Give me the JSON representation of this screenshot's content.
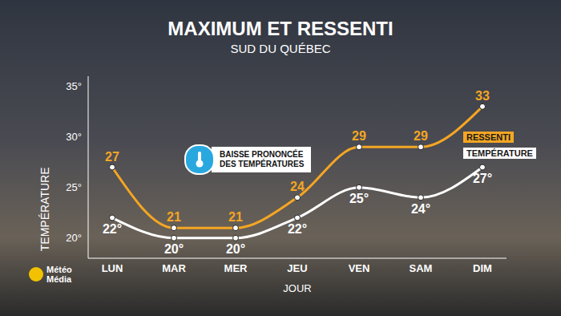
{
  "chart_data": {
    "type": "line",
    "title": "MAXIMUM ET RESSENTI",
    "subtitle": "SUD DU QUÉBEC",
    "x_label": "JOUR",
    "y_label": "TEMPÉRATURE",
    "annotations": [
      "BAISSE PRONONCÉE DES TEMPÉRATURES"
    ],
    "source": "Météo Média",
    "categories": [
      "LUN",
      "MAR",
      "MER",
      "JEU",
      "VEN",
      "SAM",
      "DIM"
    ],
    "series": [
      {
        "name": "RESSENTI",
        "color": "#f5a623",
        "values": [
          27,
          21,
          21,
          24,
          29,
          29,
          33
        ],
        "marker": "circle",
        "line_style": "solid"
      },
      {
        "name": "TEMPÉRATURE",
        "color": "#ffffff",
        "values": [
          22,
          20,
          20,
          22,
          25,
          24,
          27
        ],
        "value_labels": [
          "22°",
          "20°",
          "20°",
          "22°",
          "25°",
          "24°",
          "27°"
        ],
        "marker": "circle",
        "line_style": "solid"
      }
    ],
    "ylim": [
      18,
      36
    ],
    "yticks": [
      {
        "value": 20,
        "label": "20°"
      },
      {
        "value": 25,
        "label": "25°"
      },
      {
        "value": 30,
        "label": "30°"
      },
      {
        "value": 35,
        "label": "35°"
      }
    ],
    "grid": false,
    "legend": "right",
    "data_labels": true
  }
}
